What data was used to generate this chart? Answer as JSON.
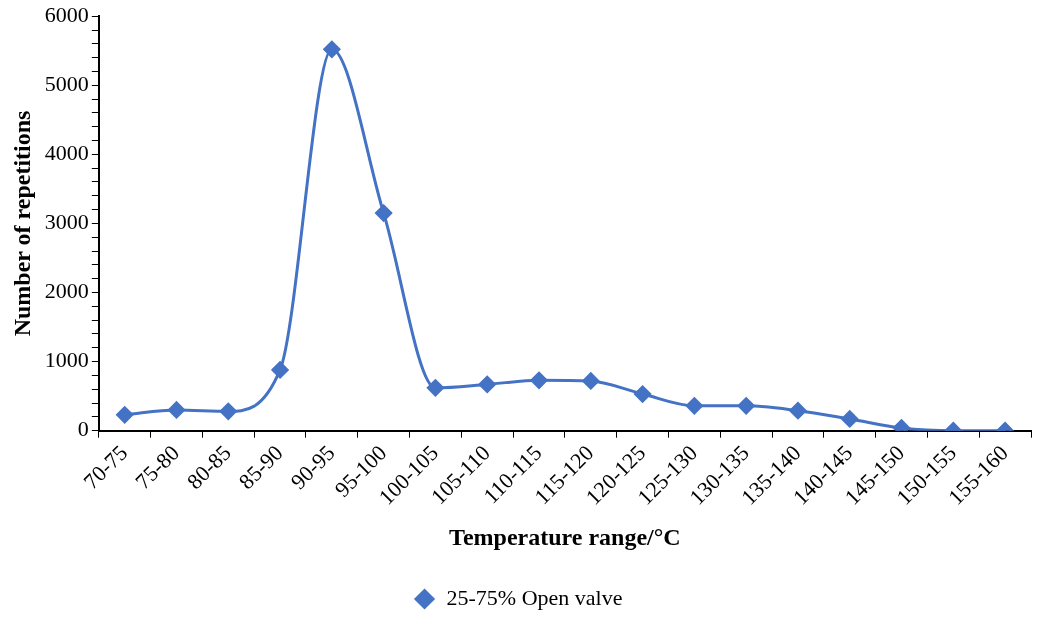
{
  "chart_data": {
    "type": "line",
    "xlabel": "Temperature range/°C",
    "ylabel": "Number of repetitions",
    "categories": [
      "70-75",
      "75-80",
      "80-85",
      "85-90",
      "90-95",
      "95-100",
      "100-105",
      "105-110",
      "110-115",
      "115-120",
      "120-125",
      "125-130",
      "130-135",
      "135-140",
      "140-145",
      "145-150",
      "150-155",
      "155-160"
    ],
    "series": [
      {
        "name": "25-75% Open valve",
        "color": "#4472c4",
        "values": [
          230,
          300,
          280,
          880,
          5520,
          3150,
          620,
          670,
          730,
          720,
          530,
          360,
          360,
          290,
          170,
          40,
          0,
          0
        ]
      }
    ],
    "ylim": [
      0,
      6000
    ],
    "yticks": [
      0,
      {
        "value": 200,
        "label": null
      },
      {
        "value": 400,
        "label": null
      },
      {
        "value": 600,
        "label": null
      },
      {
        "value": 800,
        "label": null
      },
      1000,
      {
        "value": 1200,
        "label": null
      },
      {
        "value": 1400,
        "label": null
      },
      {
        "value": 1600,
        "label": null
      },
      {
        "value": 1800,
        "label": null
      },
      2000,
      {
        "value": 2200,
        "label": null
      },
      {
        "value": 2400,
        "label": null
      },
      {
        "value": 2600,
        "label": null
      },
      {
        "value": 2800,
        "label": null
      },
      3000,
      {
        "value": 3200,
        "label": null
      },
      {
        "value": 3400,
        "label": null
      },
      {
        "value": 3600,
        "label": null
      },
      {
        "value": 3800,
        "label": null
      },
      4000,
      {
        "value": 4200,
        "label": null
      },
      {
        "value": 4400,
        "label": null
      },
      {
        "value": 4600,
        "label": null
      },
      {
        "value": 4800,
        "label": null
      },
      5000,
      {
        "value": 5200,
        "label": null
      },
      {
        "value": 5400,
        "label": null
      },
      {
        "value": 5600,
        "label": null
      },
      {
        "value": 5800,
        "label": null
      },
      6000
    ],
    "grid": false,
    "legend": "bottom",
    "marker": "diamond",
    "line_style": "solid"
  }
}
